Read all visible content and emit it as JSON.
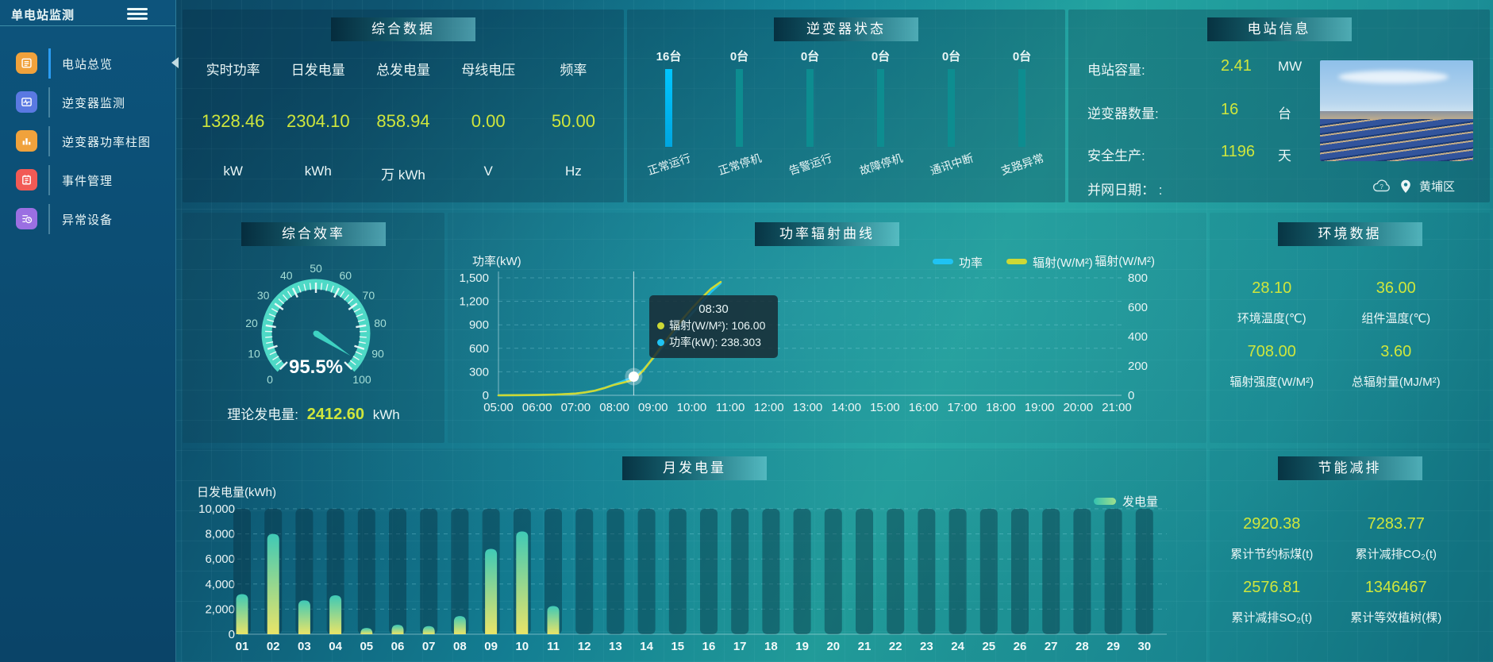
{
  "app": {
    "title": "单电站监测"
  },
  "colors": {
    "accent_yellow": "#cfe63c",
    "power_line": "#1fc3f3",
    "radiation_line": "#cdd935",
    "active_bar": "#00b9f2",
    "idle_bar": "#0d8d90",
    "gauge_arc": "#4ed9c6"
  },
  "sidebar": {
    "items": [
      {
        "label": "电站总览",
        "icon": "overview-icon",
        "active": true
      },
      {
        "label": "逆变器监测",
        "icon": "inverter-monitor-icon",
        "active": false
      },
      {
        "label": "逆变器功率柱图",
        "icon": "power-bars-icon",
        "active": false
      },
      {
        "label": "事件管理",
        "icon": "event-management-icon",
        "active": false
      },
      {
        "label": "异常设备",
        "icon": "abnormal-device-icon",
        "active": false
      }
    ]
  },
  "panels": {
    "summary": {
      "title": "综合数据",
      "metrics": [
        {
          "label": "实时功率",
          "value": "1328.46",
          "unit": "kW"
        },
        {
          "label": "日发电量",
          "value": "2304.10",
          "unit": "kWh"
        },
        {
          "label": "总发电量",
          "value": "858.94",
          "unit": "万 kWh"
        },
        {
          "label": "母线电压",
          "value": "0.00",
          "unit": "V"
        },
        {
          "label": "频率",
          "value": "50.00",
          "unit": "Hz"
        }
      ]
    },
    "inverter_status": {
      "title": "逆变器状态",
      "statuses": [
        {
          "count": "16台",
          "label": "正常运行"
        },
        {
          "count": "0台",
          "label": "正常停机"
        },
        {
          "count": "0台",
          "label": "告警运行"
        },
        {
          "count": "0台",
          "label": "故障停机"
        },
        {
          "count": "0台",
          "label": "通讯中断"
        },
        {
          "count": "0台",
          "label": "支路异常"
        }
      ]
    },
    "station_info": {
      "title": "电站信息",
      "rows": [
        {
          "label": "电站容量:",
          "value": "2.41",
          "unit": "MW"
        },
        {
          "label": "逆变器数量:",
          "value": "16",
          "unit": "台"
        },
        {
          "label": "安全生产:",
          "value": "1196",
          "unit": "天"
        }
      ],
      "grid_date_label": "并网日期： :",
      "location": "黄埔区"
    },
    "efficiency": {
      "title": "综合效率",
      "value_display": "95.5%",
      "bottom_label": "理论发电量:",
      "bottom_value": "2412.60",
      "bottom_unit": "kWh"
    },
    "power_curve": {
      "title": "功率辐射曲线",
      "tooltip": {
        "time": "08:30",
        "rows": [
          {
            "label": "辐射(W/M²):",
            "value": "106.00"
          },
          {
            "label": "功率(kW):",
            "value": "238.303"
          }
        ]
      }
    },
    "environment": {
      "title": "环境数据",
      "metrics": [
        {
          "value": "28.10",
          "label": "环境温度(℃)"
        },
        {
          "value": "36.00",
          "label": "组件温度(℃)"
        },
        {
          "value": "708.00",
          "label": "辐射强度(W/M²)"
        },
        {
          "value": "3.60",
          "label": "总辐射量(MJ/M²)"
        }
      ]
    },
    "monthly": {
      "title": "月发电量"
    },
    "saving": {
      "title": "节能减排",
      "metrics": [
        {
          "value": "2920.38",
          "label": "累计节约标煤(t)"
        },
        {
          "value": "7283.77",
          "label": "累计减排CO₂(t)"
        },
        {
          "value": "2576.81",
          "label": "累计减排SO₂(t)"
        },
        {
          "value": "1346467",
          "label": "累计等效植树(棵)"
        }
      ]
    }
  },
  "chart_data": [
    {
      "id": "efficiency-gauge",
      "type": "gauge",
      "title": "综合效率",
      "value": 95.5,
      "unit": "%",
      "min": 0,
      "max": 100,
      "major_tick": 10,
      "tick_labels": [
        0,
        10,
        20,
        30,
        40,
        50,
        60,
        70,
        80,
        90,
        100
      ],
      "arc_color": "#4ed9c6",
      "label_color": "#a5ded6"
    },
    {
      "id": "power-radiation-curve",
      "type": "line",
      "title": "功率辐射曲线",
      "x_ticks": [
        "05:00",
        "06:00",
        "07:00",
        "08:00",
        "09:00",
        "10:00",
        "11:00",
        "12:00",
        "13:00",
        "14:00",
        "15:00",
        "16:00",
        "17:00",
        "18:00",
        "19:00",
        "20:00",
        "21:00"
      ],
      "ylabel_left": "功率(kW)",
      "ylabel_right": "辐射(W/M²)",
      "ylim_left": [
        0,
        1500
      ],
      "yticks_left": [
        0,
        300,
        600,
        900,
        1200,
        1500
      ],
      "ylim_right": [
        0,
        800
      ],
      "yticks_right": [
        0,
        200,
        400,
        600,
        800
      ],
      "legend_position": "top-right",
      "grid": "dashed-horizontal",
      "series": [
        {
          "name": "功率",
          "axis": "left",
          "color": "#1fc3f3",
          "x": [
            5,
            5.5,
            6,
            6.5,
            7,
            7.25,
            7.5,
            7.75,
            8,
            8.25,
            8.5,
            8.75,
            9,
            9.25,
            9.5,
            9.75,
            10,
            10.25,
            10.5,
            10.75
          ],
          "y": [
            0,
            1,
            3,
            8,
            22,
            38,
            60,
            95,
            140,
            185,
            238.3,
            330,
            470,
            620,
            760,
            900,
            1040,
            1180,
            1320,
            1430
          ]
        },
        {
          "name": "辐射(W/M²)",
          "axis": "right",
          "color": "#cdd935",
          "x": [
            5,
            5.5,
            6,
            6.5,
            7,
            7.25,
            7.5,
            7.75,
            8,
            8.25,
            8.5,
            8.75,
            9,
            9.25,
            9.5,
            9.75,
            10,
            10.25,
            10.5,
            10.75
          ],
          "y": [
            0,
            1,
            2,
            5,
            12,
            20,
            32,
            50,
            72,
            88,
            106,
            170,
            255,
            345,
            430,
            515,
            590,
            660,
            725,
            772
          ]
        }
      ],
      "marker": {
        "x": 8.5,
        "series": "功率",
        "value": 238.303
      },
      "tooltip_values": {
        "time": "08:30",
        "radiation": 106.0,
        "power": 238.303
      }
    },
    {
      "id": "monthly-energy",
      "type": "bar",
      "title": "月发电量",
      "ylabel": "日发电量(kWh)",
      "ylim": [
        0,
        10000
      ],
      "yticks": [
        0,
        2000,
        4000,
        6000,
        8000,
        10000
      ],
      "categories": [
        "01",
        "02",
        "03",
        "04",
        "05",
        "06",
        "07",
        "08",
        "09",
        "10",
        "11",
        "12",
        "13",
        "14",
        "15",
        "16",
        "17",
        "18",
        "19",
        "20",
        "21",
        "22",
        "23",
        "24",
        "25",
        "26",
        "27",
        "28",
        "29",
        "30"
      ],
      "values": [
        3200,
        8000,
        2700,
        3100,
        500,
        750,
        650,
        1450,
        6800,
        8200,
        2250,
        0,
        0,
        0,
        0,
        0,
        0,
        0,
        0,
        0,
        0,
        0,
        0,
        0,
        0,
        0,
        0,
        0,
        0,
        0
      ],
      "legend": "发电量",
      "bar_gradient": [
        "#3fc9b6",
        "#e9e468"
      ],
      "grid": "dashed-horizontal"
    }
  ]
}
